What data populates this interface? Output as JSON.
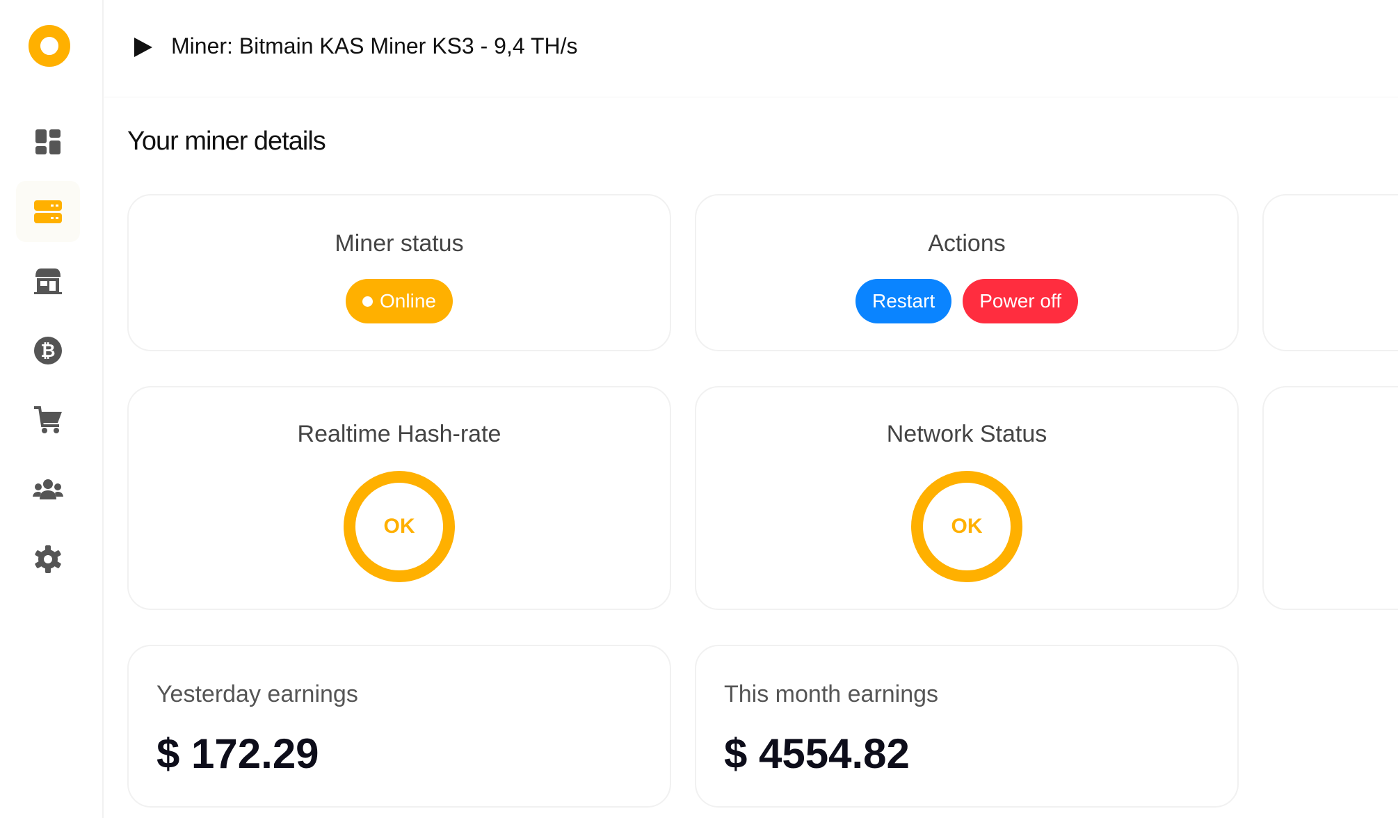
{
  "colors": {
    "accent": "#FFB000",
    "restart": "#0A84FF",
    "power_off": "#FF2D3F",
    "icon": "#555555"
  },
  "sidebar": {
    "items": [
      {
        "name": "dashboard",
        "icon": "dashboard-icon"
      },
      {
        "name": "miners",
        "icon": "server-icon",
        "active": true
      },
      {
        "name": "store",
        "icon": "store-icon"
      },
      {
        "name": "bitcoin",
        "icon": "bitcoin-icon"
      },
      {
        "name": "cart",
        "icon": "cart-icon"
      },
      {
        "name": "users",
        "icon": "users-icon"
      },
      {
        "name": "settings",
        "icon": "gear-icon"
      }
    ]
  },
  "header": {
    "title": "Miner: Bitmain KAS Miner KS3 - 9,4 TH/s"
  },
  "page": {
    "title": "Your miner details"
  },
  "status_card": {
    "title": "Miner status",
    "badge": "Online"
  },
  "actions_card": {
    "title": "Actions",
    "restart": "Restart",
    "power_off": "Power off"
  },
  "hashrate_card": {
    "title": "Realtime Hash-rate",
    "status": "OK"
  },
  "network_card": {
    "title": "Network Status",
    "status": "OK"
  },
  "yesterday": {
    "label": "Yesterday earnings",
    "value": "$ 172.29"
  },
  "month": {
    "label": "This month earnings",
    "value": "$ 4554.82"
  }
}
